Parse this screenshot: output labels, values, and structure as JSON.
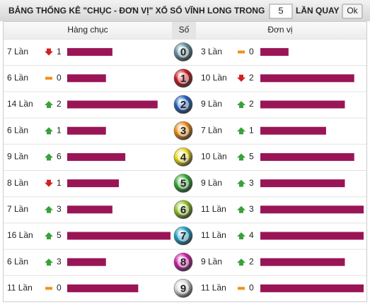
{
  "header": {
    "title": "BẢNG THỐNG KÊ \"CHỤC - ĐƠN VỊ\" XỔ SỐ VĨNH LONG TRONG",
    "input_value": "5",
    "suffix": "LẦN QUAY",
    "button": "Ok"
  },
  "table": {
    "columns": [
      "Hàng chục",
      "Số",
      "Đơn vị"
    ],
    "rows": [
      {
        "digit": 0,
        "ball_color": "#5f8f9c",
        "tens": {
          "count": 7,
          "count_label": "7 Lần",
          "trend": "down",
          "change": 1
        },
        "units": {
          "count": 3,
          "count_label": "3 Lần",
          "trend": "same",
          "change": 0
        }
      },
      {
        "digit": 1,
        "ball_color": "#c8141e",
        "tens": {
          "count": 6,
          "count_label": "6 Lần",
          "trend": "same",
          "change": 0
        },
        "units": {
          "count": 10,
          "count_label": "10 Lần",
          "trend": "down",
          "change": 2
        }
      },
      {
        "digit": 2,
        "ball_color": "#1f5fbf",
        "tens": {
          "count": 14,
          "count_label": "14 Lần",
          "trend": "up",
          "change": 2
        },
        "units": {
          "count": 9,
          "count_label": "9 Lần",
          "trend": "up",
          "change": 2
        }
      },
      {
        "digit": 3,
        "ball_color": "#f08a10",
        "tens": {
          "count": 6,
          "count_label": "6 Lần",
          "trend": "up",
          "change": 1
        },
        "units": {
          "count": 7,
          "count_label": "7 Lần",
          "trend": "up",
          "change": 1
        }
      },
      {
        "digit": 4,
        "ball_color": "#e8d814",
        "tens": {
          "count": 9,
          "count_label": "9 Lần",
          "trend": "up",
          "change": 6
        },
        "units": {
          "count": 10,
          "count_label": "10 Lần",
          "trend": "up",
          "change": 5
        }
      },
      {
        "digit": 5,
        "ball_color": "#2ea82e",
        "tens": {
          "count": 8,
          "count_label": "8 Lần",
          "trend": "down",
          "change": 1
        },
        "units": {
          "count": 9,
          "count_label": "9 Lần",
          "trend": "up",
          "change": 3
        }
      },
      {
        "digit": 6,
        "ball_color": "#8cc21e",
        "tens": {
          "count": 7,
          "count_label": "7 Lần",
          "trend": "up",
          "change": 3
        },
        "units": {
          "count": 11,
          "count_label": "11 Lần",
          "trend": "up",
          "change": 3
        }
      },
      {
        "digit": 7,
        "ball_color": "#1a9ec8",
        "tens": {
          "count": 16,
          "count_label": "16 Lần",
          "trend": "up",
          "change": 5
        },
        "units": {
          "count": 11,
          "count_label": "11 Lần",
          "trend": "up",
          "change": 4
        }
      },
      {
        "digit": 8,
        "ball_color": "#d01aa8",
        "tens": {
          "count": 6,
          "count_label": "6 Lần",
          "trend": "up",
          "change": 3
        },
        "units": {
          "count": 9,
          "count_label": "9 Lần",
          "trend": "up",
          "change": 2
        }
      },
      {
        "digit": 9,
        "ball_color": "#d8d8d8",
        "tens": {
          "count": 11,
          "count_label": "11 Lần",
          "trend": "same",
          "change": 0
        },
        "units": {
          "count": 11,
          "count_label": "11 Lần",
          "trend": "same",
          "change": 0
        }
      }
    ]
  }
}
